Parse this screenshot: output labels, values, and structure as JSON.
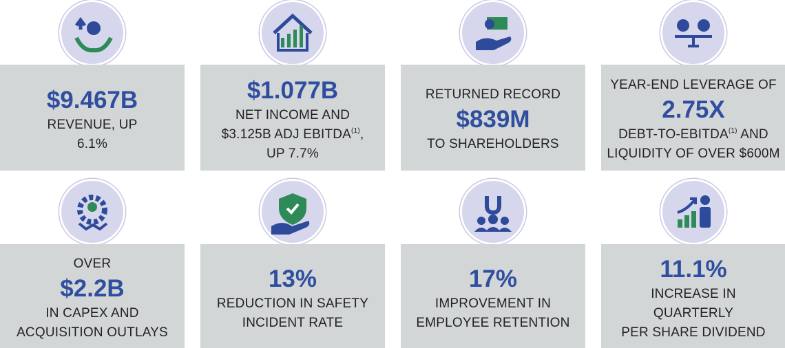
{
  "cards": [
    {
      "before": [],
      "highlight": "$9.467B",
      "after": [
        {
          "text": "REVENUE, UP"
        },
        {
          "text": "6.1%"
        }
      ]
    },
    {
      "before": [],
      "highlight": "$1.077B",
      "after": [
        {
          "text": "NET INCOME AND"
        },
        {
          "text": "$3.125B ADJ EBITDA",
          "sup": "(1)",
          "tail": ","
        },
        {
          "text": "UP 7.7%"
        }
      ]
    },
    {
      "before": [
        {
          "text": "RETURNED RECORD"
        }
      ],
      "highlight": "$839M",
      "after": [
        {
          "text": "TO SHAREHOLDERS"
        }
      ]
    },
    {
      "before": [
        {
          "text": "YEAR-END LEVERAGE OF"
        }
      ],
      "highlight": "2.75X",
      "after": [
        {
          "text": "DEBT-TO-EBITDA",
          "sup": "(1)",
          "tail": " AND"
        },
        {
          "text": "LIQUIDITY OF OVER $600M"
        }
      ]
    },
    {
      "before": [
        {
          "text": "OVER"
        }
      ],
      "highlight": "$2.2B",
      "after": [
        {
          "text": "IN CAPEX AND"
        },
        {
          "text": "ACQUISITION OUTLAYS"
        }
      ]
    },
    {
      "before": [],
      "highlight": "13%",
      "after": [
        {
          "text": "REDUCTION IN SAFETY"
        },
        {
          "text": "INCIDENT RATE"
        }
      ]
    },
    {
      "before": [],
      "highlight": "17%",
      "after": [
        {
          "text": "IMPROVEMENT IN"
        },
        {
          "text": "EMPLOYEE RETENTION"
        }
      ]
    },
    {
      "before": [],
      "highlight": "11.1%",
      "after": [
        {
          "text": "INCREASE IN"
        },
        {
          "text": "QUARTERLY"
        },
        {
          "text": "PER SHARE DIVIDEND"
        }
      ]
    }
  ]
}
